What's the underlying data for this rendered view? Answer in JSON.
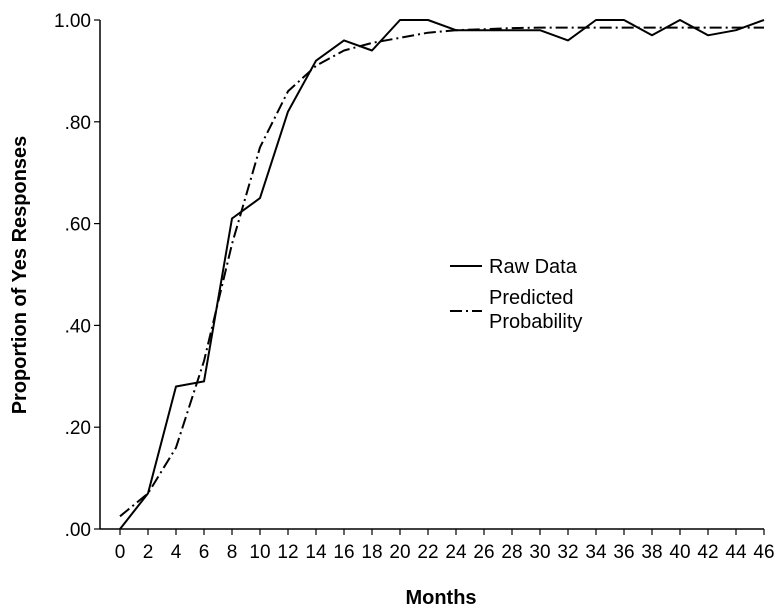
{
  "chart_data": {
    "type": "line",
    "title": "",
    "xlabel": "Months",
    "ylabel": "Proportion of Yes Responses",
    "xlim": [
      0,
      46
    ],
    "ylim": [
      0,
      1
    ],
    "x_ticks": [
      0,
      2,
      4,
      6,
      8,
      10,
      12,
      14,
      16,
      18,
      20,
      22,
      24,
      26,
      28,
      30,
      32,
      34,
      36,
      38,
      40,
      42,
      44,
      46
    ],
    "x_tick_labels": [
      "0",
      "2",
      "4",
      "6",
      "8",
      "10",
      "12",
      "14",
      "16",
      "18",
      "20",
      "22",
      "24",
      "26",
      "28",
      "30",
      "32",
      "34",
      "36",
      "38",
      "40",
      "42",
      "44",
      "46"
    ],
    "y_ticks": [
      0,
      0.2,
      0.4,
      0.6,
      0.8,
      1.0
    ],
    "y_tick_labels": [
      ".00",
      ".20",
      ".40",
      ".60",
      ".80",
      "1.00"
    ],
    "grid": false,
    "legend_position": "center-right",
    "series": [
      {
        "name": "Raw Data",
        "style": "solid",
        "color": "#000000",
        "x": [
          0,
          2,
          4,
          6,
          8,
          10,
          12,
          14,
          16,
          18,
          20,
          22,
          24,
          26,
          28,
          30,
          32,
          34,
          36,
          38,
          40,
          42,
          44,
          46
        ],
        "values": [
          0.0,
          0.07,
          0.28,
          0.29,
          0.61,
          0.65,
          0.82,
          0.92,
          0.96,
          0.94,
          1.0,
          1.0,
          0.98,
          0.98,
          0.98,
          0.98,
          0.96,
          1.0,
          1.0,
          0.97,
          1.0,
          0.97,
          0.98,
          1.0
        ]
      },
      {
        "name": "Predicted Probability",
        "name_lines": [
          "Predicted",
          "Probability"
        ],
        "style": "dash-dot",
        "color": "#000000",
        "x": [
          0,
          2,
          4,
          6,
          8,
          10,
          12,
          14,
          16,
          18,
          20,
          22,
          24,
          26,
          28,
          30,
          32,
          34,
          36,
          38,
          40,
          42,
          44,
          46
        ],
        "values": [
          0.025,
          0.07,
          0.16,
          0.33,
          0.56,
          0.75,
          0.86,
          0.91,
          0.94,
          0.955,
          0.965,
          0.975,
          0.98,
          0.982,
          0.984,
          0.985,
          0.985,
          0.985,
          0.985,
          0.985,
          0.985,
          0.985,
          0.985,
          0.985
        ]
      }
    ]
  }
}
